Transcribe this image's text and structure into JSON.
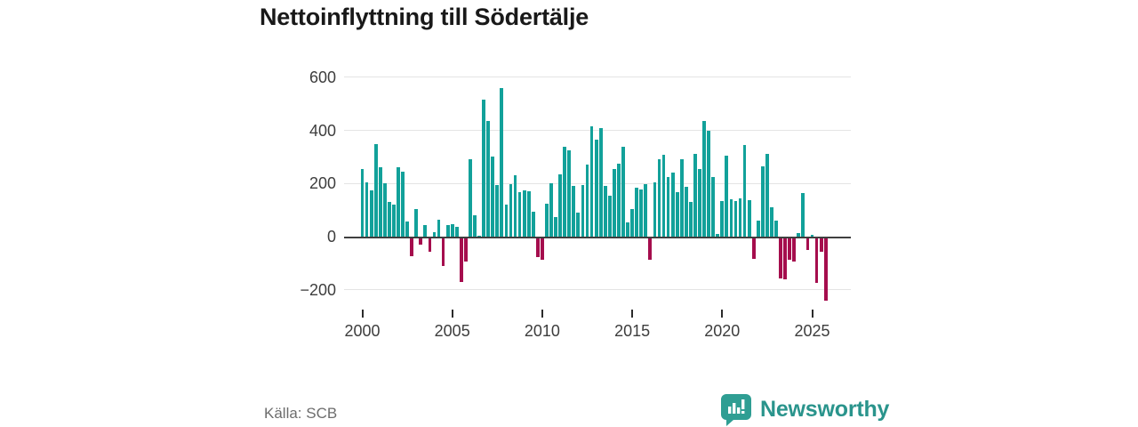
{
  "title": "Nettoinflyttning till Södertälje",
  "source_note": "Källa: SCB",
  "branding": {
    "wordmark": "Newsworthy"
  },
  "colors": {
    "positive_bar": "#12a19a",
    "negative_bar": "#a50d4d",
    "grid": "#e4e4e4",
    "zero_line": "#3f3f3f",
    "title": "#191919",
    "axis_label": "#3d3d3d",
    "source": "#6d6d6d",
    "brand": "#2a948c"
  },
  "chart_data": {
    "type": "bar",
    "title": "Nettoinflyttning till Södertälje",
    "xlabel": "",
    "ylabel": "",
    "frequency": "quarterly",
    "period_start": "2000-Q1",
    "period_end": "2025-Q4",
    "values": [
      255,
      205,
      175,
      350,
      260,
      200,
      130,
      120,
      260,
      245,
      58,
      -68,
      103,
      -25,
      43,
      -50,
      18,
      65,
      -105,
      45,
      46,
      38,
      -165,
      -86,
      292,
      80,
      4,
      515,
      435,
      300,
      195,
      558,
      122,
      196,
      232,
      167,
      175,
      172,
      95,
      -70,
      -80,
      125,
      200,
      75,
      235,
      340,
      325,
      192,
      90,
      195,
      270,
      415,
      365,
      410,
      190,
      155,
      253,
      275,
      340,
      55,
      105,
      185,
      176,
      198,
      -82,
      203,
      291,
      308,
      225,
      242,
      167,
      291,
      187,
      132,
      313,
      255,
      436,
      399,
      225,
      9,
      135,
      304,
      140,
      135,
      143,
      346,
      137,
      -77,
      60,
      264,
      310,
      110,
      60,
      -151,
      -154,
      -82,
      -88,
      15,
      164,
      -44,
      8,
      -166,
      -50,
      -233
    ],
    "y_ticks": [
      {
        "label": "600",
        "value": 600
      },
      {
        "label": "400",
        "value": 400
      },
      {
        "label": "200",
        "value": 200
      },
      {
        "label": "0",
        "value": 0
      },
      {
        "label": "−200",
        "value": -200
      }
    ],
    "x_ticks": [
      {
        "label": "2000",
        "value": 2000
      },
      {
        "label": "2005",
        "value": 2005
      },
      {
        "label": "2010",
        "value": 2010
      },
      {
        "label": "2015",
        "value": 2015
      },
      {
        "label": "2020",
        "value": 2020
      },
      {
        "label": "2025",
        "value": 2025
      }
    ],
    "ylim": [
      -280,
      640
    ],
    "grid": "horizontal",
    "legend": "none"
  }
}
